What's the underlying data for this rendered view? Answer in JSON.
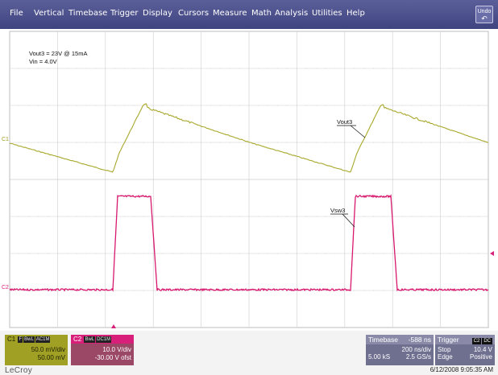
{
  "menu": {
    "items": [
      "File",
      "Vertical",
      "Timebase",
      "Trigger",
      "Display",
      "Cursors",
      "Measure",
      "Math",
      "Analysis",
      "Utilities",
      "Help"
    ],
    "undo_label_top": "Undo",
    "undo_label_bottom": "↶"
  },
  "screen": {
    "annotation_line1": "Vout3 = 23V @ 15mA",
    "annotation_line2": "Vin = 4.0V",
    "label_vout3": "Vout3",
    "label_vsw3": "Vsw3",
    "ch1_marker": "C1",
    "ch2_marker": "C2"
  },
  "channel1": {
    "name": "C1",
    "tags": [
      "F",
      "BwL",
      "AC1M"
    ],
    "scale": "50.0 mV/div",
    "offset": "50.00 mV",
    "color": "#a0a024"
  },
  "channel2": {
    "name": "C2",
    "tags": [
      "BwL",
      "DC1M"
    ],
    "scale": "10.0 V/div",
    "offset": "-30.00 V ofst",
    "color": "#d81f79"
  },
  "timebase": {
    "label": "Timebase",
    "delay": "-588 ns",
    "scale": "200 ns/div",
    "samples": "5.00 kS",
    "rate": "2.5 GS/s"
  },
  "trigger": {
    "label": "Trigger",
    "tags": [
      "C2",
      "DC"
    ],
    "mode": "Stop",
    "level": "10.4 V",
    "type": "Edge",
    "slope": "Positive"
  },
  "footer": {
    "brand": "LeCroy",
    "datetime": "6/12/2008 9:05:35 AM"
  }
}
